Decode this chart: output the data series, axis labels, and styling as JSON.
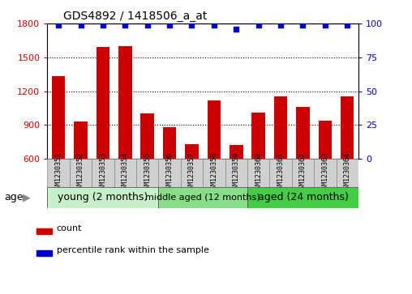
{
  "title": "GDS4892 / 1418506_a_at",
  "samples": [
    "GSM1230351",
    "GSM1230352",
    "GSM1230353",
    "GSM1230354",
    "GSM1230355",
    "GSM1230356",
    "GSM1230357",
    "GSM1230358",
    "GSM1230359",
    "GSM1230360",
    "GSM1230361",
    "GSM1230362",
    "GSM1230363",
    "GSM1230364"
  ],
  "counts": [
    1330,
    930,
    1590,
    1600,
    1000,
    880,
    730,
    1120,
    720,
    1010,
    1150,
    1060,
    940,
    1150
  ],
  "percentile_ranks": [
    99,
    99,
    99,
    99,
    99,
    99,
    99,
    99,
    96,
    99,
    99,
    99,
    99,
    99
  ],
  "ylim_left": [
    600,
    1800
  ],
  "ylim_right": [
    0,
    100
  ],
  "yticks_left": [
    600,
    900,
    1200,
    1500,
    1800
  ],
  "yticks_right": [
    0,
    25,
    50,
    75,
    100
  ],
  "bar_color": "#cc0000",
  "dot_color": "#0000cc",
  "grid_lines": [
    900,
    1200,
    1500
  ],
  "groups": [
    {
      "label": "young (2 months)",
      "start": 0,
      "end": 5
    },
    {
      "label": "middle aged (12 months)",
      "start": 5,
      "end": 9
    },
    {
      "label": "aged (24 months)",
      "start": 9,
      "end": 14
    }
  ],
  "group_colors": [
    "#c8f0c8",
    "#88dd88",
    "#44cc44"
  ],
  "sample_box_color": "#d0d0d0",
  "age_label": "age",
  "legend_count_label": "count",
  "legend_pct_label": "percentile rank within the sample"
}
